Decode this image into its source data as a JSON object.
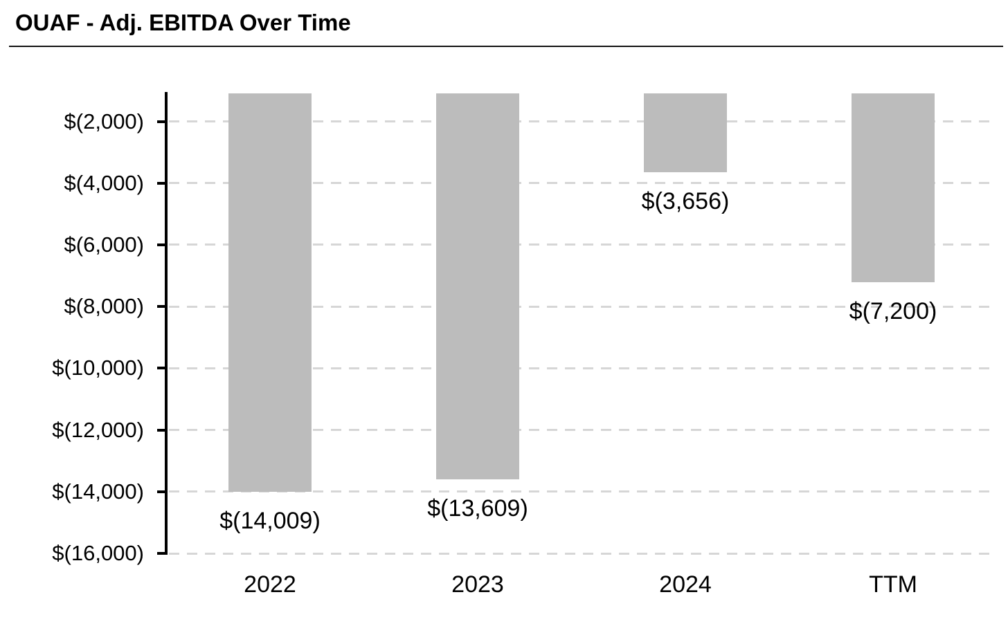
{
  "header": {
    "title": "OUAF - Adj. EBITDA Over Time"
  },
  "chart_data": {
    "type": "bar",
    "title": "OUAF - Adj. EBITDA Over Time",
    "categories": [
      "2022",
      "2023",
      "2024",
      "TTM"
    ],
    "values": [
      -14009,
      -13609,
      -3656,
      -7200
    ],
    "data_labels": [
      "$(14,009)",
      "$(13,609)",
      "$(3,656)",
      "$(7,200)"
    ],
    "y_ticks": [
      {
        "value": -2000,
        "label": "$(2,000)"
      },
      {
        "value": -4000,
        "label": "$(4,000)"
      },
      {
        "value": -6000,
        "label": "$(6,000)"
      },
      {
        "value": -8000,
        "label": "$(8,000)"
      },
      {
        "value": -10000,
        "label": "$(10,000)"
      },
      {
        "value": -12000,
        "label": "$(12,000)"
      },
      {
        "value": -14000,
        "label": "$(14,000)"
      },
      {
        "value": -16000,
        "label": "$(16,000)"
      }
    ],
    "ylim": [
      -16000,
      -1090
    ],
    "xlabel": "",
    "ylabel": "",
    "legend": "none",
    "grid": "horizontal-dashed",
    "bars_clipped_at_plot_top": true,
    "colors": {
      "bar": "#bcbcbc",
      "gridline": "#d6d6d6",
      "axis": "#000000",
      "text": "#000000"
    }
  }
}
